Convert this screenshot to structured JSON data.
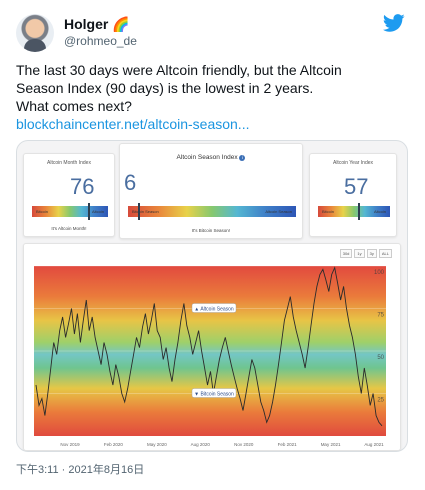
{
  "tweet": {
    "author_name": "Holger",
    "author_emoji": "🌈",
    "handle": "@rohmeo_de",
    "text_lines": [
      "The last 30 days were Altcoin friendly, but the Altcoin",
      "Season Index (90 days) is the lowest in 2 years.",
      "What comes next?"
    ],
    "link_text": "blockchaincenter.net/altcoin-season...",
    "timestamp": "下午3:11 · 2021年8月16日"
  },
  "card": {
    "month_panel": {
      "title": "Altcoin Month Index",
      "value": "76",
      "left_label": "Bitcoin",
      "right_label": "Altcoin",
      "caption": "It's Altcoin Month!",
      "level": 0.76
    },
    "season_panel": {
      "title": "Altcoin Season Index",
      "value": "6",
      "left_label": "Bitcoin Season",
      "right_label": "Altcoin Season",
      "caption": "It's Bitcoin Season!",
      "level": 0.06
    },
    "year_panel": {
      "title": "Altcoin Year Index",
      "value": "57",
      "left_label": "Bitcoin",
      "right_label": "Altcoin",
      "caption": "",
      "level": 0.57
    },
    "time_buttons": [
      "30d",
      "1y",
      "3y",
      "ALL"
    ],
    "chart_data": {
      "type": "line",
      "ylim": [
        0,
        100
      ],
      "y_ticks": [
        25,
        50,
        75,
        100
      ],
      "x_ticks": [
        "Nov 2019",
        "Feb 2020",
        "May 2020",
        "Aug 2020",
        "Nov 2020",
        "Feb 2021",
        "May 2021",
        "Aug 2021"
      ],
      "annotations": [
        "Altcoin Season",
        "Bitcoin Season"
      ],
      "series": [
        {
          "values": [
            30,
            18,
            22,
            12,
            25,
            40,
            55,
            48,
            62,
            70,
            58,
            66,
            75,
            60,
            72,
            55,
            68,
            80,
            62,
            70,
            58,
            50,
            42,
            55,
            48,
            38,
            30,
            42,
            35,
            25,
            20,
            28,
            38,
            48,
            58,
            52,
            64,
            72,
            60,
            68,
            78,
            62,
            58,
            45,
            52,
            40,
            32,
            45,
            55,
            68,
            78,
            65,
            58,
            48,
            55,
            62,
            50,
            40,
            30,
            38,
            25,
            35,
            45,
            52,
            58,
            50,
            42,
            35,
            28,
            22,
            15,
            25,
            35,
            45,
            40,
            30,
            20,
            15,
            8,
            12,
            20,
            30,
            42,
            55,
            68,
            75,
            82,
            70,
            62,
            55,
            48,
            40,
            52,
            65,
            78,
            88,
            95,
            98,
            92,
            85,
            95,
            99,
            90,
            80,
            88,
            75,
            65,
            58,
            48,
            35,
            25,
            40,
            30,
            18,
            25,
            12,
            8,
            6
          ]
        }
      ]
    }
  }
}
